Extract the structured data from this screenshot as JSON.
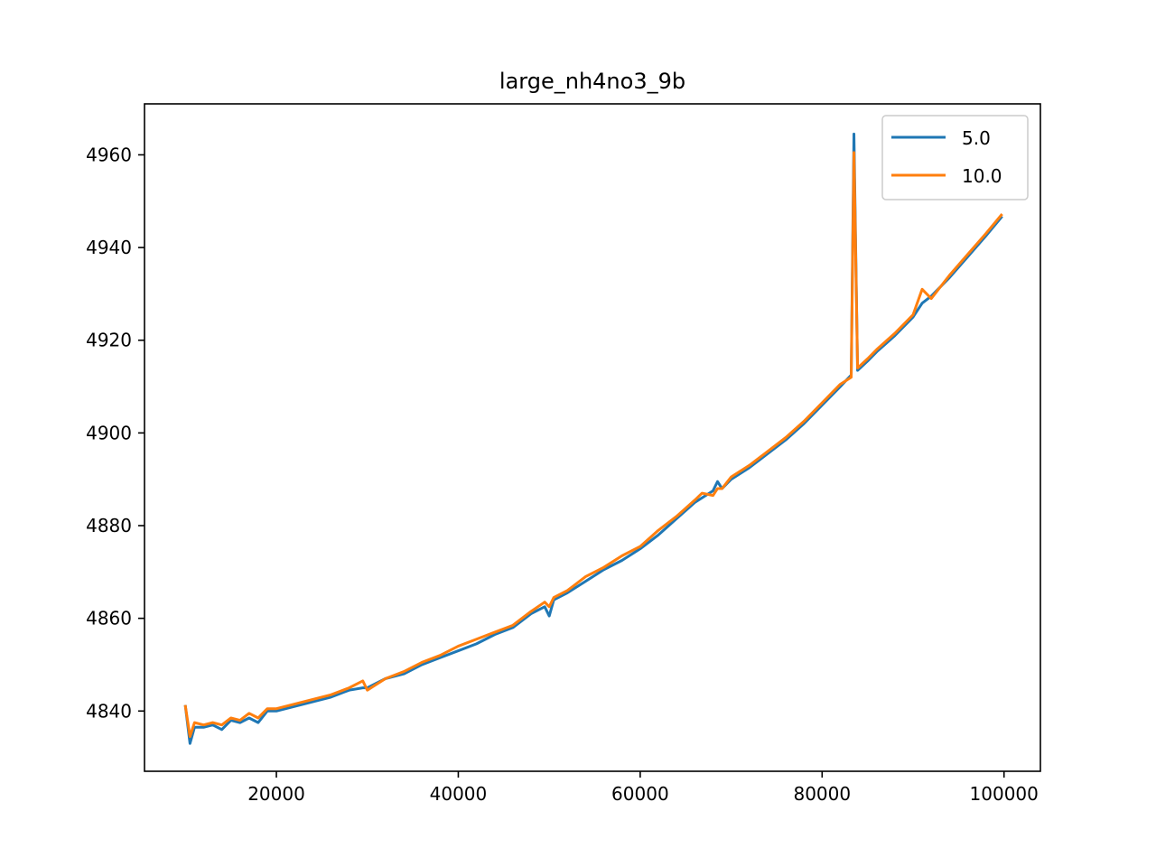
{
  "chart_data": {
    "type": "line",
    "title": "large_nh4no3_9b",
    "xlabel": "",
    "ylabel": "",
    "xlim": [
      5500,
      104000
    ],
    "ylim": [
      4827,
      4971
    ],
    "grid": false,
    "legend_position": "top-right",
    "x_ticks": [
      20000,
      40000,
      60000,
      80000,
      100000
    ],
    "x_tick_labels": [
      "20000",
      "40000",
      "60000",
      "80000",
      "100000"
    ],
    "y_ticks": [
      4840,
      4860,
      4880,
      4900,
      4920,
      4940,
      4960
    ],
    "y_tick_labels": [
      "4840",
      "4860",
      "4880",
      "4900",
      "4920",
      "4940",
      "4960"
    ],
    "series": [
      {
        "name": "5.0",
        "color": "#1f77b4",
        "x": [
          10000,
          10500,
          11000,
          12000,
          13000,
          14000,
          15000,
          16000,
          17000,
          18000,
          19000,
          20000,
          22000,
          24000,
          26000,
          28000,
          29500,
          30000,
          32000,
          34000,
          36000,
          38000,
          40000,
          42000,
          44000,
          46000,
          48000,
          49500,
          50000,
          50500,
          52000,
          54000,
          56000,
          58000,
          60000,
          62000,
          64000,
          66000,
          68000,
          68500,
          69000,
          70000,
          72000,
          74000,
          76000,
          78000,
          80000,
          82000,
          83200,
          83500,
          83900,
          85000,
          86000,
          88000,
          90000,
          91000,
          92000,
          94000,
          96000,
          98000,
          99700
        ],
        "y": [
          4841,
          4833,
          4836.5,
          4836.5,
          4837,
          4836,
          4838,
          4837.5,
          4838.5,
          4837.5,
          4840,
          4840,
          4841,
          4842,
          4843,
          4844.5,
          4845,
          4845,
          4847,
          4848,
          4850,
          4851.5,
          4853,
          4854.5,
          4856.5,
          4858,
          4861,
          4862.5,
          4860.5,
          4864,
          4865.5,
          4868,
          4870.5,
          4872.5,
          4875,
          4878,
          4881.5,
          4885,
          4887.5,
          4889.5,
          4888,
          4890,
          4892.5,
          4895.5,
          4898.5,
          4902,
          4906,
          4910,
          4912.5,
          4964.5,
          4913.5,
          4915.5,
          4917.5,
          4921,
          4925,
          4928,
          4929.5,
          4933.5,
          4938,
          4942.5,
          4946.5
        ]
      },
      {
        "name": "10.0",
        "color": "#ff7f0e",
        "x": [
          10000,
          10500,
          11000,
          12000,
          13000,
          14000,
          15000,
          16000,
          17000,
          18000,
          19000,
          20000,
          22000,
          24000,
          26000,
          28000,
          29500,
          30000,
          32000,
          34000,
          36000,
          38000,
          40000,
          42000,
          44000,
          46000,
          48000,
          49500,
          50000,
          50500,
          52000,
          54000,
          56000,
          58000,
          60000,
          62000,
          64000,
          66000,
          66800,
          68000,
          68500,
          69000,
          70000,
          72000,
          74000,
          76000,
          78000,
          80000,
          82000,
          83200,
          83500,
          83900,
          85000,
          86000,
          88000,
          90000,
          91000,
          92000,
          94000,
          96000,
          98000,
          99700
        ],
        "y": [
          4841,
          4834.5,
          4837.5,
          4837,
          4837.5,
          4837,
          4838.5,
          4838,
          4839.5,
          4838.5,
          4840.5,
          4840.5,
          4841.5,
          4842.5,
          4843.5,
          4845,
          4846.5,
          4844.5,
          4847,
          4848.5,
          4850.5,
          4852,
          4854,
          4855.5,
          4857,
          4858.5,
          4861.5,
          4863.5,
          4862.5,
          4864.5,
          4866,
          4869,
          4871,
          4873.5,
          4875.5,
          4879,
          4882,
          4885.5,
          4887,
          4886.5,
          4888,
          4888,
          4890.5,
          4893,
          4896,
          4899,
          4902.5,
          4906.5,
          4910.5,
          4912,
          4960.5,
          4914,
          4916,
          4918,
          4921.5,
          4925.5,
          4931,
          4929,
          4934,
          4938.5,
          4943,
          4947
        ]
      }
    ]
  }
}
